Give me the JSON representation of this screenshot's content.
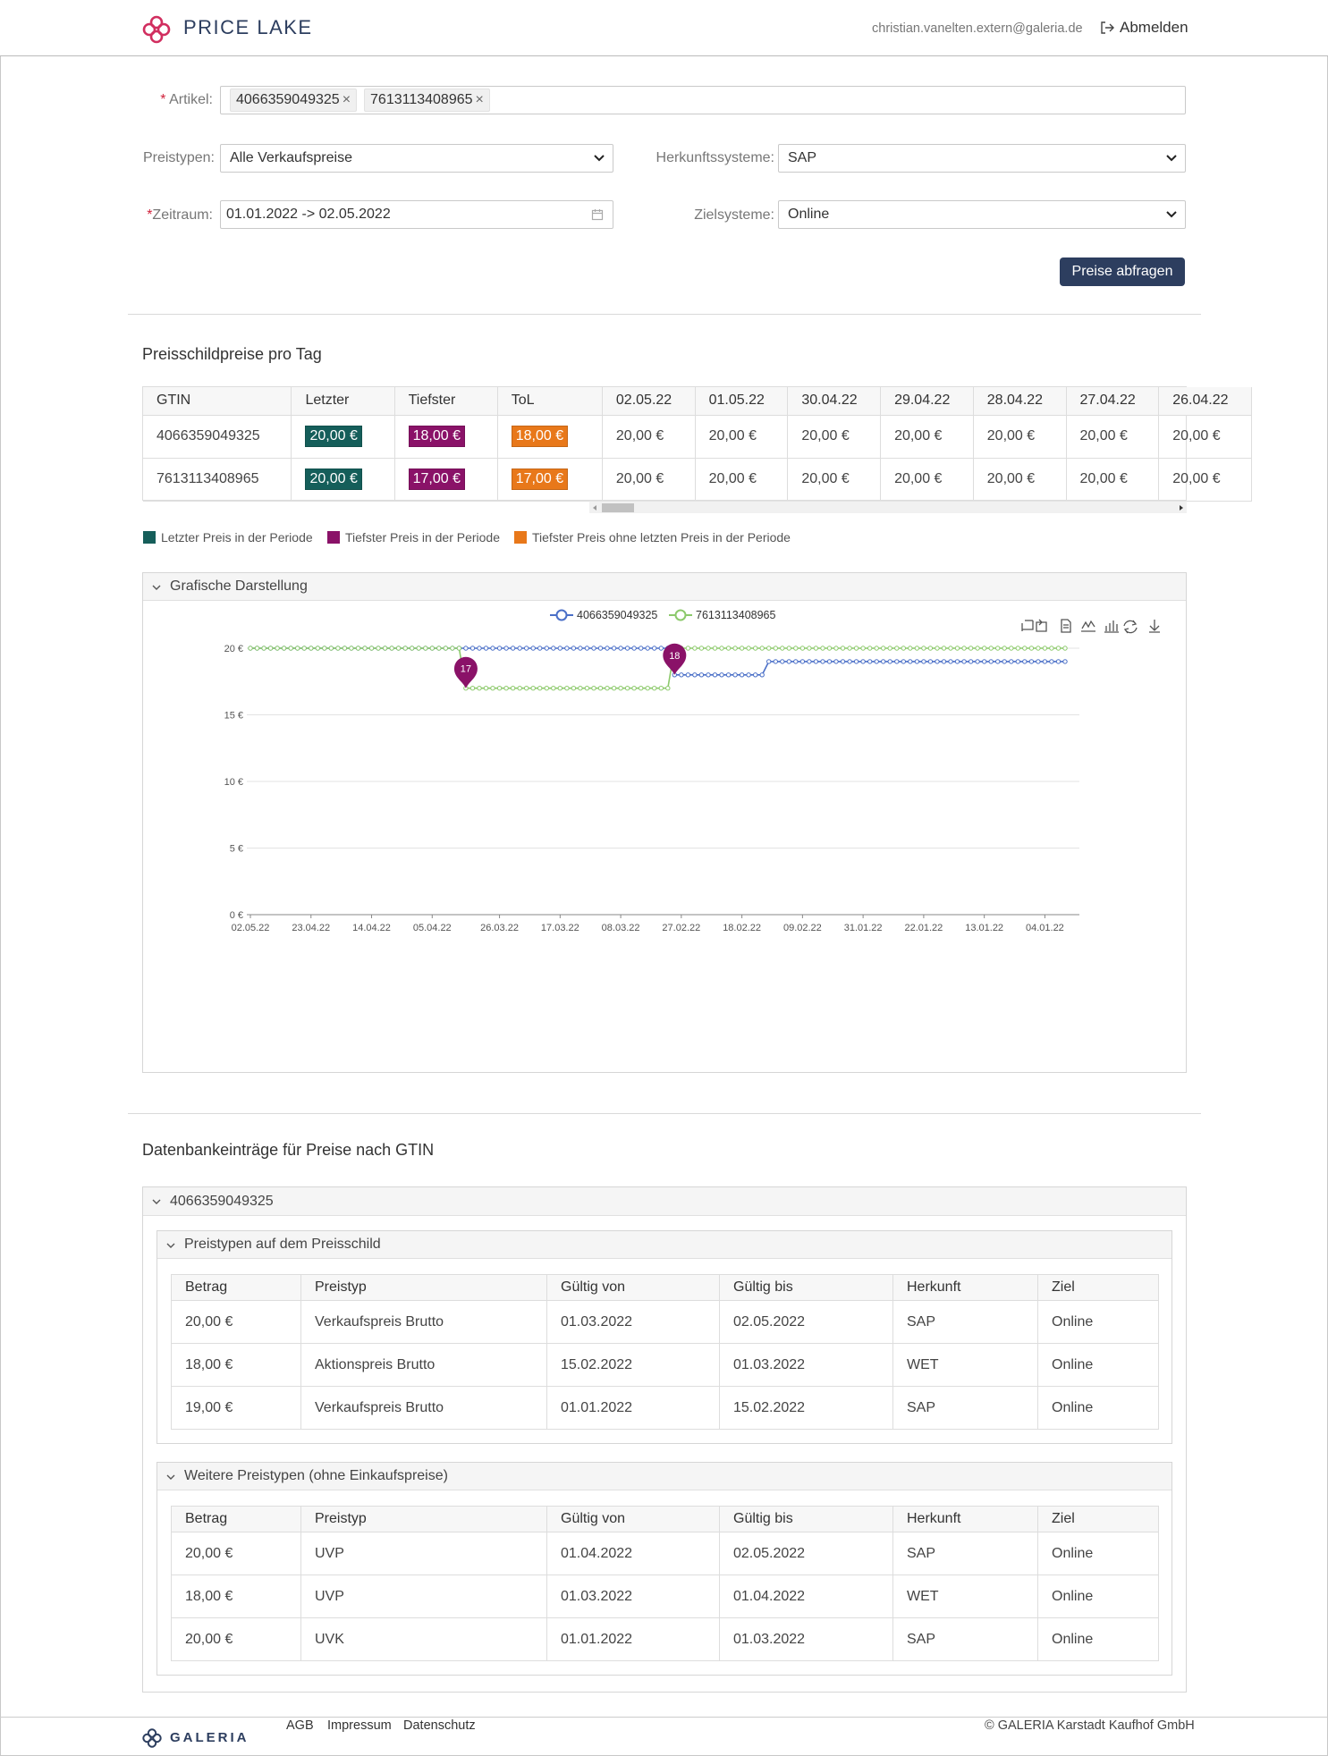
{
  "header": {
    "app_title": "PRICE LAKE",
    "user_email": "christian.vanelten.extern@galeria.de",
    "logout_label": "Abmelden"
  },
  "form": {
    "artikel_label": "Artikel:",
    "artikel_tags": [
      "4066359049325",
      "7613113408965"
    ],
    "preistypen_label": "Preistypen:",
    "preistypen_value": "Alle Verkaufspreise",
    "herkunft_label": "Herkunftssysteme:",
    "herkunft_value": "SAP",
    "zeitraum_label": "Zeitraum:",
    "zeitraum_value": "01.01.2022 -> 02.05.2022",
    "ziel_label": "Zielsysteme:",
    "ziel_value": "Online",
    "submit_label": "Preise abfragen"
  },
  "price_section": {
    "title": "Preisschildpreise pro Tag",
    "columns": [
      "GTIN",
      "Letzter",
      "Tiefster",
      "ToL",
      "02.05.22",
      "01.05.22",
      "30.04.22",
      "29.04.22",
      "28.04.22",
      "27.04.22",
      "26.04.22"
    ],
    "rows": [
      {
        "gtin": "4066359049325",
        "letzter": "20,00 €",
        "tiefster": "18,00 €",
        "tol": "18,00 €",
        "days": [
          "20,00 €",
          "20,00 €",
          "20,00 €",
          "20,00 €",
          "20,00 €",
          "20,00 €",
          "20,00 €"
        ]
      },
      {
        "gtin": "7613113408965",
        "letzter": "20,00 €",
        "tiefster": "17,00 €",
        "tol": "17,00 €",
        "days": [
          "20,00 €",
          "20,00 €",
          "20,00 €",
          "20,00 €",
          "20,00 €",
          "20,00 €",
          "20,00 €"
        ]
      }
    ],
    "legend": [
      {
        "label": "Letzter Preis in der Periode",
        "color": "#155e5a"
      },
      {
        "label": "Tiefster Preis in der Periode",
        "color": "#8a1268"
      },
      {
        "label": "Tiefster Preis ohne letzten Preis in der Periode",
        "color": "#e8781a"
      }
    ]
  },
  "chart_panel": {
    "title": "Grafische Darstellung"
  },
  "chart_data": {
    "type": "line",
    "x_order": "descending dates from 02.05.22 to 01.01.22",
    "x_ticks": [
      "02.05.22",
      "23.04.22",
      "14.04.22",
      "05.04.22",
      "26.03.22",
      "17.03.22",
      "08.03.22",
      "27.02.22",
      "18.02.22",
      "09.02.22",
      "31.01.22",
      "22.01.22",
      "13.01.22",
      "04.01.22"
    ],
    "y_ticks": [
      "0 €",
      "5 €",
      "10 €",
      "15 €",
      "20 €"
    ],
    "ylim": [
      0,
      20
    ],
    "series": [
      {
        "name": "4066359049325",
        "color": "#4a6fc7",
        "segments": [
          {
            "from": "02.05.22",
            "to": "01.03.22",
            "value": 20
          },
          {
            "from": "01.03.22",
            "to": "15.02.22",
            "value": 18
          },
          {
            "from": "15.02.22",
            "to": "01.01.22",
            "value": 19
          }
        ]
      },
      {
        "name": "7613113408965",
        "color": "#8cc96b",
        "segments": [
          {
            "from": "02.05.22",
            "to": "01.04.22",
            "value": 20
          },
          {
            "from": "01.04.22",
            "to": "01.03.22",
            "value": 17
          },
          {
            "from": "01.03.22",
            "to": "01.01.22",
            "value": 20
          }
        ]
      }
    ],
    "markers": [
      {
        "label": "17",
        "date": "31.03.22",
        "value": 17
      },
      {
        "label": "18",
        "date": "28.02.22",
        "value": 18
      }
    ]
  },
  "db_section": {
    "title": "Datenbankeinträge für Preise nach GTIN",
    "gtin": "4066359049325",
    "columns": [
      "Betrag",
      "Preistyp",
      "Gültig von",
      "Gültig bis",
      "Herkunft",
      "Ziel"
    ],
    "group1": {
      "title": "Preistypen auf dem Preisschild",
      "rows": [
        [
          "20,00 €",
          "Verkaufspreis Brutto",
          "01.03.2022",
          "02.05.2022",
          "SAP",
          "Online"
        ],
        [
          "18,00 €",
          "Aktionspreis Brutto",
          "15.02.2022",
          "01.03.2022",
          "WET",
          "Online"
        ],
        [
          "19,00 €",
          "Verkaufspreis Brutto",
          "01.01.2022",
          "15.02.2022",
          "SAP",
          "Online"
        ]
      ]
    },
    "group2": {
      "title": "Weitere Preistypen (ohne Einkaufspreise)",
      "rows": [
        [
          "20,00 €",
          "UVP",
          "01.04.2022",
          "02.05.2022",
          "SAP",
          "Online"
        ],
        [
          "18,00 €",
          "UVP",
          "01.03.2022",
          "01.04.2022",
          "WET",
          "Online"
        ],
        [
          "20,00 €",
          "UVK",
          "01.01.2022",
          "01.03.2022",
          "SAP",
          "Online"
        ]
      ]
    }
  },
  "footer": {
    "brand": "GALERIA",
    "links": [
      "AGB",
      "Impressum",
      "Datenschutz"
    ],
    "copyright": "© GALERIA Karstadt Kaufhof GmbH"
  }
}
